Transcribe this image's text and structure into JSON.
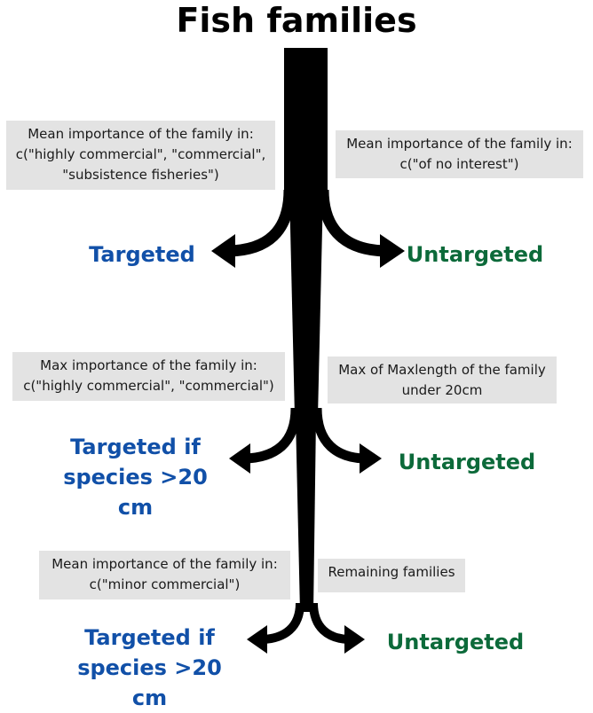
{
  "title": "Fish families",
  "colors": {
    "trunk": "#000000",
    "box_bg": "#e3e3e3",
    "targeted": "#1150a8",
    "untargeted": "#0c6a3a"
  },
  "levels": [
    {
      "left_condition": "Mean importance of the family in:\nc(\"highly commercial\", \"commercial\",\n\"subsistence fisheries\")",
      "right_condition": "Mean importance of the family in:\nc(\"of no interest\")",
      "left_outcome": "Targeted",
      "right_outcome": "Untargeted"
    },
    {
      "left_condition": "Max importance of the family in:\nc(\"highly commercial\", \"commercial\")",
      "right_condition": "Max of Maxlength of the family\nunder 20cm",
      "left_outcome": "Targeted if\nspecies >20 cm",
      "right_outcome": "Untargeted"
    },
    {
      "left_condition": "Mean importance of the family in:\nc(\"minor commercial\")",
      "right_condition": "Remaining families",
      "left_outcome": "Targeted if\nspecies >20 cm",
      "right_outcome": "Untargeted"
    }
  ]
}
